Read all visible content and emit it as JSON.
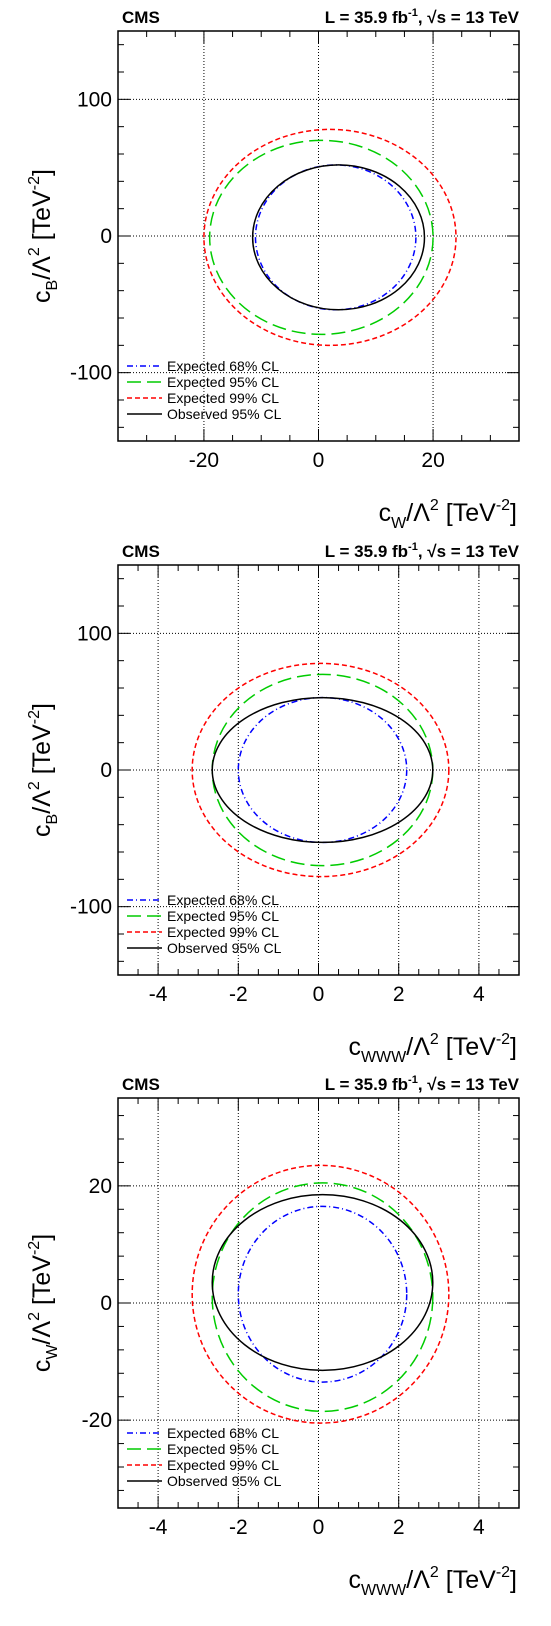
{
  "chart_data": [
    {
      "type": "contour",
      "experiment": "CMS",
      "lumi_label": "L = 35.9 fb",
      "lumi_exp": "-1",
      "energy_label": "s = 13 TeV",
      "xlabel": {
        "main": "c",
        "sub": "W",
        "rest": "/Λ",
        "sup": "2",
        "unit": " [TeV",
        "unit_sup": "-2",
        "close": "]"
      },
      "ylabel": {
        "main": "c",
        "sub": "B",
        "rest": "/Λ",
        "sup": "2",
        "unit": " [TeV",
        "unit_sup": "-2",
        "close": "]"
      },
      "xlim": [
        -35,
        35
      ],
      "ylim": [
        -150,
        150
      ],
      "xticks": [
        -20,
        0,
        20
      ],
      "yticks": [
        -100,
        0,
        100
      ],
      "grid": true,
      "legend_position": "bottom-left",
      "series": [
        {
          "name": "Expected 68% CL",
          "color": "#0000ff",
          "style": "dash-dot",
          "cx": 3.0,
          "cy": -1.0,
          "rx": 14.0,
          "ry": 53.0
        },
        {
          "name": "Expected 95% CL",
          "color": "#00cc00",
          "style": "long-dash",
          "cx": 0.5,
          "cy": -1.0,
          "rx": 19.5,
          "ry": 71.0
        },
        {
          "name": "Expected 99% CL",
          "color": "#ff0000",
          "style": "short-dash",
          "cx": 2.0,
          "cy": -1.0,
          "rx": 22.0,
          "ry": 79.0
        },
        {
          "name": "Observed 95% CL",
          "color": "#000000",
          "style": "solid",
          "cx": 3.5,
          "cy": -1.0,
          "rx": 15.0,
          "ry": 53.0
        }
      ]
    },
    {
      "type": "contour",
      "experiment": "CMS",
      "lumi_label": "L = 35.9 fb",
      "lumi_exp": "-1",
      "energy_label": "s = 13 TeV",
      "xlabel": {
        "main": "c",
        "sub": "WWW",
        "rest": "/Λ",
        "sup": "2",
        "unit": " [TeV",
        "unit_sup": "-2",
        "close": "]"
      },
      "ylabel": {
        "main": "c",
        "sub": "B",
        "rest": "/Λ",
        "sup": "2",
        "unit": " [TeV",
        "unit_sup": "-2",
        "close": "]"
      },
      "xlim": [
        -5,
        5
      ],
      "ylim": [
        -150,
        150
      ],
      "xticks": [
        -4,
        -2,
        0,
        2,
        4
      ],
      "yticks": [
        -100,
        0,
        100
      ],
      "grid": true,
      "legend_position": "bottom-left",
      "series": [
        {
          "name": "Expected 68% CL",
          "color": "#0000ff",
          "style": "dash-dot",
          "cx": 0.1,
          "cy": 0.0,
          "rx": 2.1,
          "ry": 53.0
        },
        {
          "name": "Expected 95% CL",
          "color": "#00cc00",
          "style": "long-dash",
          "cx": 0.1,
          "cy": 0.0,
          "rx": 2.75,
          "ry": 70.0
        },
        {
          "name": "Expected 99% CL",
          "color": "#ff0000",
          "style": "short-dash",
          "cx": 0.05,
          "cy": 0.0,
          "rx": 3.2,
          "ry": 78.0
        },
        {
          "name": "Observed 95% CL",
          "color": "#000000",
          "style": "solid",
          "cx": 0.1,
          "cy": 0.0,
          "rx": 2.75,
          "ry": 53.0
        }
      ]
    },
    {
      "type": "contour",
      "experiment": "CMS",
      "lumi_label": "L = 35.9 fb",
      "lumi_exp": "-1",
      "energy_label": "s = 13 TeV",
      "xlabel": {
        "main": "c",
        "sub": "WWW",
        "rest": "/Λ",
        "sup": "2",
        "unit": " [TeV",
        "unit_sup": "-2",
        "close": "]"
      },
      "ylabel": {
        "main": "c",
        "sub": "W",
        "rest": "/Λ",
        "sup": "2",
        "unit": " [TeV",
        "unit_sup": "-2",
        "close": "]"
      },
      "xlim": [
        -5,
        5
      ],
      "ylim": [
        -35,
        35
      ],
      "xticks": [
        -4,
        -2,
        0,
        2,
        4
      ],
      "yticks": [
        -20,
        0,
        20
      ],
      "grid": true,
      "legend_position": "bottom-left",
      "series": [
        {
          "name": "Expected 68% CL",
          "color": "#0000ff",
          "style": "dash-dot",
          "cx": 0.1,
          "cy": 1.5,
          "rx": 2.1,
          "ry": 15.0
        },
        {
          "name": "Expected 95% CL",
          "color": "#00cc00",
          "style": "long-dash",
          "cx": 0.1,
          "cy": 1.0,
          "rx": 2.75,
          "ry": 19.5
        },
        {
          "name": "Expected 99% CL",
          "color": "#ff0000",
          "style": "short-dash",
          "cx": 0.05,
          "cy": 1.5,
          "rx": 3.2,
          "ry": 22.0
        },
        {
          "name": "Observed 95% CL",
          "color": "#000000",
          "style": "solid",
          "cx": 0.1,
          "cy": 3.5,
          "rx": 2.75,
          "ry": 15.0
        }
      ]
    }
  ]
}
